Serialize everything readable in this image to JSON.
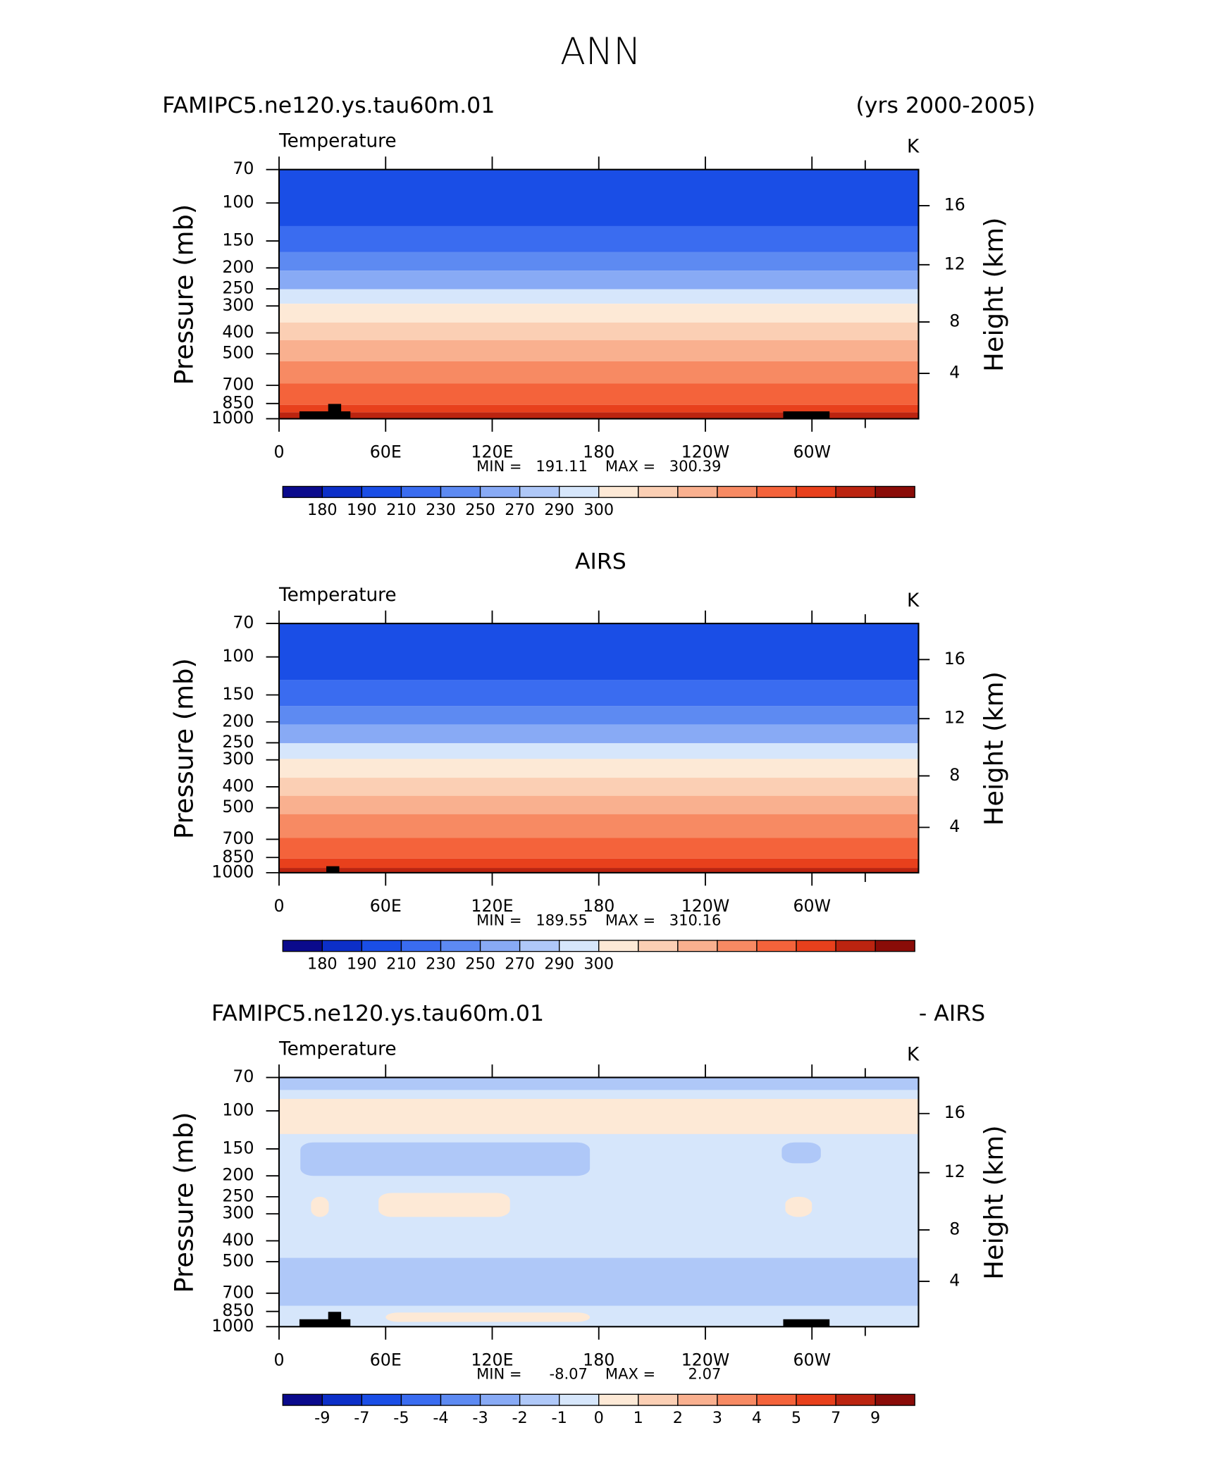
{
  "title": "ANN",
  "chart_data": [
    {
      "type": "contour",
      "title_left": "FAMIPC5.ne120.ys.tau60m.01",
      "title_right": "(yrs 2000-2005)",
      "variable": "Temperature",
      "units": "K",
      "ylabel": "Pressure (mb)",
      "y2label": "Height (km)",
      "ylog": true,
      "ylim": [
        1000,
        70
      ],
      "yticks": [
        70,
        100,
        150,
        200,
        250,
        300,
        400,
        500,
        700,
        850,
        1000
      ],
      "y2ticks": [
        4,
        8,
        12,
        16
      ],
      "xlim": [
        0,
        360
      ],
      "xticks": [
        0,
        {
          "value": 60,
          "label": "60E"
        },
        {
          "value": 120,
          "label": "120E"
        },
        180,
        {
          "value": 240,
          "label": "120W"
        },
        {
          "value": 300,
          "label": "60W"
        }
      ],
      "min_label": "MIN =",
      "min": 191.11,
      "max_label": "MAX =",
      "max": 300.39,
      "colorbar": {
        "colors": [
          "#0a0a8c",
          "#0c2fc8",
          "#1a4ee6",
          "#3a6cf0",
          "#5d8af2",
          "#88aaf5",
          "#afc8f8",
          "#d6e6fb",
          "#fde9d6",
          "#fbcfb4",
          "#f9b08f",
          "#f78a63",
          "#f4633b",
          "#e8401c",
          "#bb2410",
          "#8a0c08"
        ],
        "ticks": [
          180,
          190,
          210,
          230,
          250,
          270,
          290,
          300
        ]
      },
      "bands": [
        {
          "color": "#1a4ee6",
          "p": [
            70,
            128
          ],
          "lon": [
            0,
            360
          ]
        },
        {
          "color": "#3a6cf0",
          "p": [
            128,
            169
          ],
          "lon": [
            0,
            360
          ]
        },
        {
          "color": "#5d8af2",
          "p": [
            169,
            206
          ],
          "lon": [
            0,
            360
          ]
        },
        {
          "color": "#88aaf5",
          "p": [
            206,
            251
          ],
          "lon": [
            0,
            360
          ]
        },
        {
          "color": "#d6e6fb",
          "p": [
            251,
            293
          ],
          "lon": [
            0,
            360
          ]
        },
        {
          "color": "#fde9d6",
          "p": [
            293,
            358
          ],
          "lon": [
            0,
            360
          ]
        },
        {
          "color": "#fbcfb4",
          "p": [
            358,
            432
          ],
          "lon": [
            0,
            360
          ]
        },
        {
          "color": "#f9b08f",
          "p": [
            432,
            542
          ],
          "lon": [
            0,
            360
          ]
        },
        {
          "color": "#f78a63",
          "p": [
            542,
            687
          ],
          "lon": [
            0,
            360
          ]
        },
        {
          "color": "#f4633b",
          "p": [
            687,
            862
          ],
          "lon": [
            0,
            360
          ]
        },
        {
          "color": "#e8401c",
          "p": [
            862,
            934
          ],
          "lon": [
            0,
            360
          ]
        },
        {
          "color": "#bb2410",
          "p": [
            934,
            1000
          ],
          "lon": [
            0,
            360
          ]
        }
      ]
    },
    {
      "type": "contour",
      "title": "AIRS",
      "variable": "Temperature",
      "units": "K",
      "ylabel": "Pressure (mb)",
      "y2label": "Height (km)",
      "ylog": true,
      "ylim": [
        1000,
        70
      ],
      "yticks": [
        70,
        100,
        150,
        200,
        250,
        300,
        400,
        500,
        700,
        850,
        1000
      ],
      "y2ticks": [
        4,
        8,
        12,
        16
      ],
      "xlim": [
        0,
        360
      ],
      "xticks": [
        0,
        {
          "value": 60,
          "label": "60E"
        },
        {
          "value": 120,
          "label": "120E"
        },
        180,
        {
          "value": 240,
          "label": "120W"
        },
        {
          "value": 300,
          "label": "60W"
        }
      ],
      "min_label": "MIN =",
      "min": 189.55,
      "max_label": "MAX =",
      "max": 310.16,
      "colorbar": {
        "colors": [
          "#0a0a8c",
          "#0c2fc8",
          "#1a4ee6",
          "#3a6cf0",
          "#5d8af2",
          "#88aaf5",
          "#afc8f8",
          "#d6e6fb",
          "#fde9d6",
          "#fbcfb4",
          "#f9b08f",
          "#f78a63",
          "#f4633b",
          "#e8401c",
          "#bb2410",
          "#8a0c08"
        ],
        "ticks": [
          180,
          190,
          210,
          230,
          250,
          270,
          290,
          300
        ]
      },
      "bands": [
        {
          "color": "#1a4ee6",
          "p": [
            70,
            128
          ],
          "lon": [
            0,
            360
          ]
        },
        {
          "color": "#3a6cf0",
          "p": [
            128,
            169
          ],
          "lon": [
            0,
            360
          ]
        },
        {
          "color": "#5d8af2",
          "p": [
            169,
            206
          ],
          "lon": [
            0,
            360
          ]
        },
        {
          "color": "#88aaf5",
          "p": [
            206,
            251
          ],
          "lon": [
            0,
            360
          ]
        },
        {
          "color": "#d6e6fb",
          "p": [
            251,
            297
          ],
          "lon": [
            0,
            360
          ]
        },
        {
          "color": "#fde9d6",
          "p": [
            297,
            363
          ],
          "lon": [
            0,
            360
          ]
        },
        {
          "color": "#fbcfb4",
          "p": [
            363,
            440
          ],
          "lon": [
            0,
            360
          ]
        },
        {
          "color": "#f9b08f",
          "p": [
            440,
            535
          ],
          "lon": [
            0,
            360
          ]
        },
        {
          "color": "#f78a63",
          "p": [
            535,
            690
          ],
          "lon": [
            0,
            360
          ]
        },
        {
          "color": "#f4633b",
          "p": [
            690,
            860
          ],
          "lon": [
            0,
            360
          ]
        },
        {
          "color": "#e8401c",
          "p": [
            860,
            950
          ],
          "lon": [
            0,
            360
          ]
        },
        {
          "color": "#bb2410",
          "p": [
            950,
            1000
          ],
          "lon": [
            0,
            360
          ]
        }
      ]
    },
    {
      "type": "contour",
      "title_left": "FAMIPC5.ne120.ys.tau60m.01",
      "title_right": "- AIRS",
      "variable": "Temperature",
      "units": "K",
      "ylabel": "Pressure (mb)",
      "y2label": "Height (km)",
      "ylog": true,
      "ylim": [
        1000,
        70
      ],
      "yticks": [
        70,
        100,
        150,
        200,
        250,
        300,
        400,
        500,
        700,
        850,
        1000
      ],
      "y2ticks": [
        4,
        8,
        12,
        16
      ],
      "xlim": [
        0,
        360
      ],
      "xticks": [
        0,
        {
          "value": 60,
          "label": "60E"
        },
        {
          "value": 120,
          "label": "120E"
        },
        180,
        {
          "value": 240,
          "label": "120W"
        },
        {
          "value": 300,
          "label": "60W"
        }
      ],
      "min_label": "MIN =",
      "min": -8.07,
      "max_label": "MAX =",
      "max": 2.07,
      "colorbar": {
        "colors": [
          "#0a0a8c",
          "#0c2fc8",
          "#1a4ee6",
          "#3a6cf0",
          "#5d8af2",
          "#88aaf5",
          "#afc8f8",
          "#d6e6fb",
          "#fde9d6",
          "#fbcfb4",
          "#f9b08f",
          "#f78a63",
          "#f4633b",
          "#e8401c",
          "#bb2410",
          "#8a0c08"
        ],
        "ticks": [
          -9,
          -7,
          -5,
          -4,
          -3,
          -2,
          -1,
          0,
          1,
          2,
          3,
          4,
          5,
          7,
          9
        ]
      },
      "bands": [
        {
          "color": "#d6e6fb",
          "p": [
            70,
            1000
          ],
          "lon": [
            0,
            360
          ]
        },
        {
          "color": "#afc8f8",
          "p": [
            70,
            80
          ],
          "lon": [
            0,
            360
          ]
        },
        {
          "color": "#fde9d6",
          "p": [
            88,
            128
          ],
          "lon": [
            0,
            360
          ]
        },
        {
          "color": "#afc8f8",
          "p": [
            140,
            200
          ],
          "lon": [
            12,
            175
          ]
        },
        {
          "color": "#afc8f8",
          "p": [
            140,
            175
          ],
          "lon": [
            283,
            305
          ]
        },
        {
          "color": "#fde9d6",
          "p": [
            240,
            310
          ],
          "lon": [
            56,
            130
          ]
        },
        {
          "color": "#fde9d6",
          "p": [
            250,
            310
          ],
          "lon": [
            18,
            28
          ]
        },
        {
          "color": "#fde9d6",
          "p": [
            250,
            310
          ],
          "lon": [
            285,
            300
          ]
        },
        {
          "color": "#afc8f8",
          "p": [
            480,
            800
          ],
          "lon": [
            0,
            360
          ]
        },
        {
          "color": "#fde9d6",
          "p": [
            860,
            950
          ],
          "lon": [
            60,
            175
          ]
        }
      ]
    }
  ]
}
